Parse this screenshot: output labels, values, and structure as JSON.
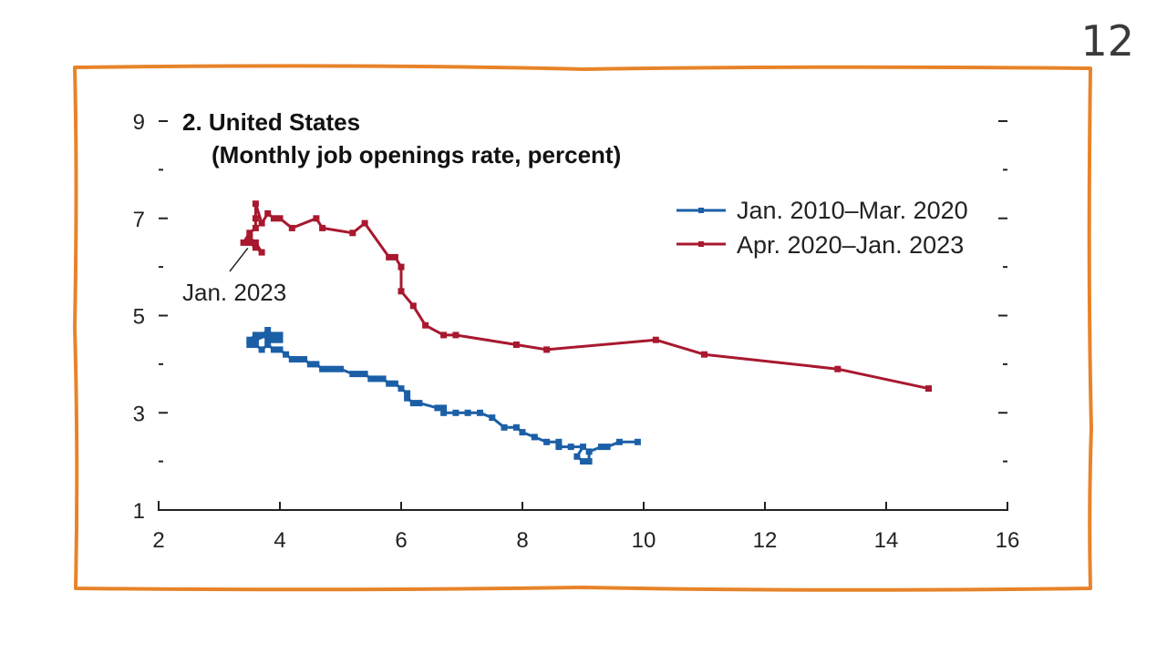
{
  "page_number": "12",
  "colors": {
    "frame": "#E8832A",
    "series1": "#1B5FA7",
    "series2": "#A8182E",
    "axis": "#222222"
  },
  "chart_data": {
    "type": "line",
    "title": "2. United States",
    "subtitle": "(Monthly job openings rate, percent)",
    "xlabel": "",
    "ylabel": "",
    "xlim": [
      2,
      16
    ],
    "ylim": [
      1,
      9
    ],
    "x_ticks": [
      2,
      4,
      6,
      8,
      10,
      12,
      14,
      16
    ],
    "y_ticks": [
      1,
      3,
      5,
      7,
      9
    ],
    "y_minor_ticks": [
      2,
      4,
      6,
      8
    ],
    "legend_position": "top-right",
    "annotation": {
      "text": "Jan. 2023",
      "target": [
        3.5,
        6.5
      ]
    },
    "series": [
      {
        "name": "Jan. 2010–Mar. 2020",
        "color": "#1B5FA7",
        "points": [
          [
            9.9,
            2.4
          ],
          [
            9.6,
            2.4
          ],
          [
            9.4,
            2.3
          ],
          [
            9.3,
            2.3
          ],
          [
            9.1,
            2.2
          ],
          [
            9.1,
            2.0
          ],
          [
            9.0,
            2.0
          ],
          [
            8.9,
            2.1
          ],
          [
            9.0,
            2.3
          ],
          [
            8.8,
            2.3
          ],
          [
            8.6,
            2.3
          ],
          [
            8.6,
            2.4
          ],
          [
            8.4,
            2.4
          ],
          [
            8.2,
            2.5
          ],
          [
            8.0,
            2.6
          ],
          [
            7.9,
            2.7
          ],
          [
            7.7,
            2.7
          ],
          [
            7.5,
            2.9
          ],
          [
            7.3,
            3.0
          ],
          [
            7.1,
            3.0
          ],
          [
            6.9,
            3.0
          ],
          [
            6.7,
            3.0
          ],
          [
            6.7,
            3.1
          ],
          [
            6.6,
            3.1
          ],
          [
            6.3,
            3.2
          ],
          [
            6.2,
            3.2
          ],
          [
            6.1,
            3.3
          ],
          [
            6.1,
            3.4
          ],
          [
            6.0,
            3.5
          ],
          [
            5.9,
            3.6
          ],
          [
            5.8,
            3.6
          ],
          [
            5.7,
            3.7
          ],
          [
            5.6,
            3.7
          ],
          [
            5.5,
            3.7
          ],
          [
            5.4,
            3.8
          ],
          [
            5.3,
            3.8
          ],
          [
            5.2,
            3.8
          ],
          [
            5.0,
            3.9
          ],
          [
            4.9,
            3.9
          ],
          [
            4.8,
            3.9
          ],
          [
            4.7,
            3.9
          ],
          [
            4.6,
            4.0
          ],
          [
            4.5,
            4.0
          ],
          [
            4.4,
            4.1
          ],
          [
            4.3,
            4.1
          ],
          [
            4.2,
            4.1
          ],
          [
            4.1,
            4.2
          ],
          [
            4.0,
            4.3
          ],
          [
            3.9,
            4.3
          ],
          [
            3.8,
            4.4
          ],
          [
            3.7,
            4.3
          ],
          [
            3.6,
            4.4
          ],
          [
            3.6,
            4.5
          ],
          [
            3.5,
            4.4
          ],
          [
            3.5,
            4.5
          ],
          [
            3.6,
            4.6
          ],
          [
            3.7,
            4.6
          ],
          [
            3.8,
            4.7
          ],
          [
            3.8,
            4.5
          ],
          [
            3.9,
            4.5
          ],
          [
            4.0,
            4.5
          ],
          [
            4.0,
            4.6
          ],
          [
            3.9,
            4.6
          ],
          [
            3.8,
            4.6
          ],
          [
            3.6,
            4.5
          ]
        ]
      },
      {
        "name": "Apr. 2020–Jan. 2023",
        "color": "#A8182E",
        "points": [
          [
            14.7,
            3.5
          ],
          [
            13.2,
            3.9
          ],
          [
            11.0,
            4.2
          ],
          [
            10.2,
            4.5
          ],
          [
            8.4,
            4.3
          ],
          [
            7.9,
            4.4
          ],
          [
            6.9,
            4.6
          ],
          [
            6.7,
            4.6
          ],
          [
            6.4,
            4.8
          ],
          [
            6.2,
            5.2
          ],
          [
            6.0,
            5.5
          ],
          [
            6.0,
            6.0
          ],
          [
            5.9,
            6.2
          ],
          [
            5.8,
            6.2
          ],
          [
            5.4,
            6.9
          ],
          [
            5.2,
            6.7
          ],
          [
            4.7,
            6.8
          ],
          [
            4.6,
            7.0
          ],
          [
            4.2,
            6.8
          ],
          [
            4.0,
            7.0
          ],
          [
            3.9,
            7.0
          ],
          [
            3.8,
            7.1
          ],
          [
            3.7,
            6.9
          ],
          [
            3.6,
            7.3
          ],
          [
            3.6,
            7.0
          ],
          [
            3.6,
            6.8
          ],
          [
            3.5,
            6.7
          ],
          [
            3.4,
            6.5
          ],
          [
            3.5,
            6.5
          ],
          [
            3.6,
            6.4
          ],
          [
            3.7,
            6.3
          ],
          [
            3.6,
            6.5
          ],
          [
            3.5,
            6.6
          ]
        ]
      }
    ]
  }
}
